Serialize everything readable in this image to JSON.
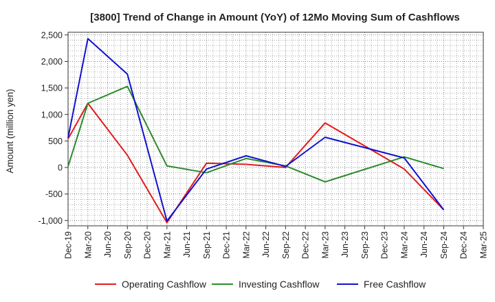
{
  "chart_data": {
    "type": "line",
    "title": "[3800]  Trend of Change in Amount (YoY) of 12Mo Moving Sum of Cashflows",
    "xlabel": "",
    "ylabel": "Amount (million yen)",
    "ylim": [
      -1100,
      2550
    ],
    "yticks": [
      -1000,
      -500,
      0,
      500,
      1000,
      1500,
      2000,
      2500
    ],
    "ytick_labels": [
      "-1,000",
      "-500",
      "0",
      "500",
      "1,000",
      "1,500",
      "2,000",
      "2,500"
    ],
    "categories": [
      "Dec-19",
      "Mar-20",
      "Jun-20",
      "Sep-20",
      "Dec-20",
      "Mar-21",
      "Jun-21",
      "Sep-21",
      "Dec-21",
      "Mar-22",
      "Jun-22",
      "Sep-22",
      "Dec-22",
      "Mar-23",
      "Jun-23",
      "Sep-23",
      "Dec-23",
      "Mar-24",
      "Jun-24",
      "Sep-24",
      "Dec-24",
      "Mar-25"
    ],
    "series": [
      {
        "name": "Operating Cashflow",
        "color": "#e31a1c",
        "values": [
          540,
          1210,
          null,
          230,
          null,
          -1040,
          null,
          80,
          null,
          60,
          null,
          0,
          null,
          840,
          null,
          null,
          null,
          -30,
          null,
          -800,
          null,
          null
        ]
      },
      {
        "name": "Investing Cashflow",
        "color": "#2a8a2a",
        "values": [
          20,
          1210,
          null,
          1530,
          null,
          30,
          null,
          -100,
          null,
          170,
          null,
          30,
          null,
          -270,
          null,
          null,
          null,
          200,
          null,
          -20,
          null,
          null
        ]
      },
      {
        "name": "Free Cashflow",
        "color": "#1010d0",
        "values": [
          560,
          2430,
          null,
          1760,
          null,
          -1010,
          null,
          -30,
          null,
          220,
          null,
          20,
          null,
          570,
          null,
          null,
          null,
          180,
          null,
          -800,
          null,
          null
        ]
      }
    ],
    "grid": true,
    "legend_position": "bottom"
  }
}
